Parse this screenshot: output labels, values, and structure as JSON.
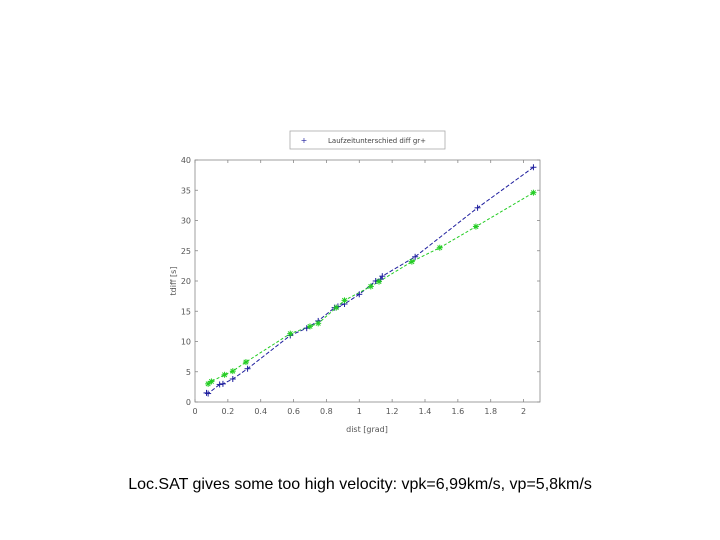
{
  "caption": "Loc.SAT gives some too high velocity: vpk=6,99km/s, vp=5,8km/s",
  "chart_data": {
    "type": "line",
    "xlabel": "dist [grad]",
    "ylabel": "tdiff [s]",
    "xlim": [
      0,
      2.1
    ],
    "ylim": [
      0,
      40
    ],
    "xticks": [
      0,
      0.2,
      0.4,
      0.6,
      0.8,
      1,
      1.2,
      1.4,
      1.6,
      1.8,
      2
    ],
    "xtick_labels": [
      "0",
      "0.2",
      "0.4",
      "0.6",
      "0.8",
      "1",
      "1.2",
      "1.4",
      "1.6",
      "1.8",
      "2"
    ],
    "yticks": [
      0,
      5,
      10,
      15,
      20,
      25,
      30,
      35,
      40
    ],
    "ytick_labels": [
      "0",
      "5",
      "10",
      "15",
      "20",
      "25",
      "30",
      "35",
      "40"
    ],
    "grid": false,
    "legend_position": "top",
    "series": [
      {
        "name": "Laufzeitunterschied diff gr+",
        "color": "#1f1f9e",
        "marker": "+",
        "x": [
          0.07,
          0.08,
          0.15,
          0.17,
          0.23,
          0.32,
          0.58,
          0.68,
          0.75,
          0.85,
          0.87,
          0.91,
          1.0,
          1.1,
          1.13,
          1.14,
          1.34,
          1.72,
          2.06
        ],
        "y": [
          1.5,
          1.4,
          2.9,
          3.0,
          3.8,
          5.5,
          11.0,
          12.2,
          13.4,
          15.6,
          15.8,
          16.2,
          17.8,
          20.0,
          20.3,
          20.8,
          24.0,
          32.1,
          38.8
        ]
      },
      {
        "name": "",
        "color": "#22cc22",
        "marker": "*",
        "x": [
          0.08,
          0.1,
          0.18,
          0.23,
          0.31,
          0.58,
          0.7,
          0.75,
          0.86,
          0.91,
          1.07,
          1.12,
          1.32,
          1.49,
          1.71,
          2.06
        ],
        "y": [
          3.0,
          3.4,
          4.5,
          5.1,
          6.6,
          11.3,
          12.5,
          13.0,
          15.6,
          16.8,
          19.1,
          19.9,
          23.2,
          25.5,
          29.0,
          34.6
        ]
      }
    ]
  }
}
